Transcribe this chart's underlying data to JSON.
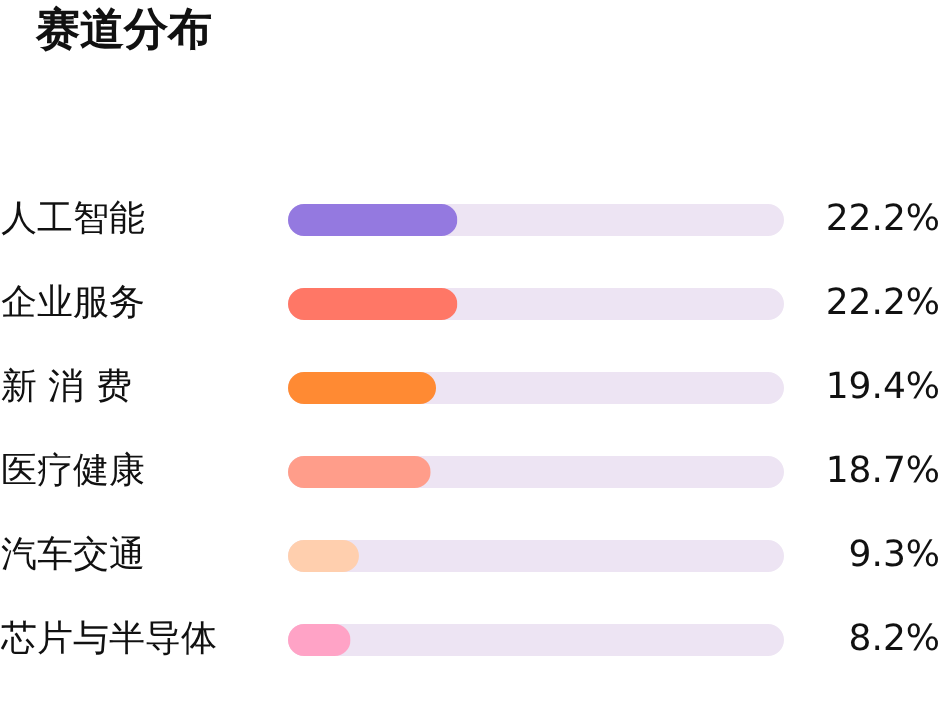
{
  "chart_data": {
    "type": "bar",
    "orientation": "horizontal",
    "title": "赛道分布",
    "categories": [
      "人工智能",
      "企业服务",
      "新 消 费",
      "医疗健康",
      "汽车交通",
      "芯片与半导体"
    ],
    "values": [
      22.2,
      22.2,
      19.4,
      18.7,
      9.3,
      8.2
    ],
    "colors": [
      "#9479e0",
      "#ff7766",
      "#ff8a33",
      "#ff9d8a",
      "#ffcfae",
      "#ffa3c6"
    ],
    "value_labels": [
      "22.2%",
      "22.2%",
      "19.4%",
      "18.7%",
      "9.3%",
      "8.2%"
    ],
    "xlim": [
      0,
      65
    ],
    "tick_labels": "y"
  }
}
